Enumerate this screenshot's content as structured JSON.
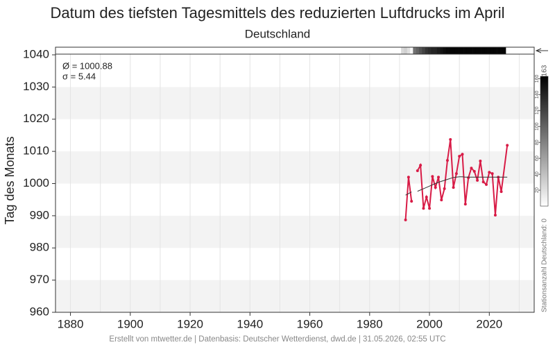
{
  "chart_data": {
    "type": "line",
    "title": "Datum des tiefsten Tagesmittels des reduzierten Luftdrucks im April",
    "subtitle": "Deutschland",
    "y_label": "Tag des Monats",
    "annotations": [
      "Ø = 1000.88",
      "σ = 5.44"
    ],
    "footer": "Erstellt von mtwetter.de | Datenbasis: Deutscher Wetterdienst, dwd.de | 31.05.2026, 02:55 UTC",
    "x": [
      1992,
      1993,
      1994,
      1995,
      1996,
      1997,
      1998,
      1999,
      2000,
      2001,
      2002,
      2003,
      2004,
      2005,
      2006,
      2007,
      2008,
      2009,
      2010,
      2011,
      2012,
      2013,
      2014,
      2015,
      2016,
      2017,
      2018,
      2019,
      2020,
      2021,
      2022,
      2023,
      2024,
      2026
    ],
    "series": [
      {
        "color": "#d81b46",
        "markers": true,
        "values": [
          988.7,
          1002.0,
          994.5,
          null,
          1004.0,
          1005.7,
          992.3,
          995.8,
          992.3,
          1002.2,
          998.8,
          1002.0,
          994.9,
          998.4,
          1007.2,
          1013.7,
          998.8,
          1003.1,
          1008.5,
          1009.1,
          993.6,
          1001.8,
          1004.8,
          1003.8,
          1001.0,
          1007.0,
          1000.5,
          999.7,
          1003.5,
          1003.1,
          990.2,
          1002.0,
          997.5,
          1011.9
        ]
      },
      {
        "color": "#333333",
        "markers": false,
        "values": [
          996.4,
          996.9,
          997.4,
          null,
          997.6,
          998.0,
          998.4,
          998.8,
          999.2,
          999.6,
          1000.0,
          1000.4,
          1000.7,
          1001.0,
          1001.3,
          1001.6,
          1001.9,
          1002.0,
          1002.1,
          1002.1,
          1002.0,
          1002.0,
          1002.0,
          1002.0,
          1002.0,
          1002.0,
          1002.0,
          1002.0,
          1002.0,
          1002.0,
          1002.0,
          1002.0,
          1002.0,
          1002.0
        ]
      }
    ],
    "xlim": [
      1875,
      2035
    ],
    "xticks": [
      1880,
      1900,
      1920,
      1940,
      1960,
      1980,
      2000,
      2020
    ],
    "xminorticks": [
      1890,
      1910,
      1930,
      1950,
      1970,
      1990,
      2010,
      2030
    ],
    "ylim": [
      960,
      1040
    ],
    "yticks": [
      960,
      970,
      980,
      990,
      1000,
      1010,
      1020,
      1030,
      1040
    ],
    "grid": true,
    "station_counts": {
      "x": [
        1991,
        1992,
        1993,
        1994,
        1995,
        1996,
        1997,
        1998,
        1999,
        2000,
        2001,
        2002,
        2003,
        2004,
        2005,
        2006,
        2007,
        2008,
        2009,
        2010,
        2011,
        2012,
        2013,
        2014,
        2015,
        2016,
        2017,
        2018,
        2019,
        2020,
        2021,
        2022,
        2023,
        2024,
        2025
      ],
      "values": [
        25,
        30,
        20,
        5,
        90,
        100,
        110,
        120,
        130,
        135,
        140,
        140,
        145,
        150,
        155,
        158,
        160,
        160,
        160,
        160,
        160,
        160,
        160,
        160,
        160,
        160,
        160,
        160,
        160,
        160,
        160,
        160,
        160,
        160,
        160
      ],
      "label": "Stationsanzahl Deutschland: 0",
      "max_label": "163",
      "lim": [
        0,
        163
      ],
      "ticks": [
        20,
        40,
        60,
        80,
        100,
        120,
        140,
        160
      ]
    }
  }
}
